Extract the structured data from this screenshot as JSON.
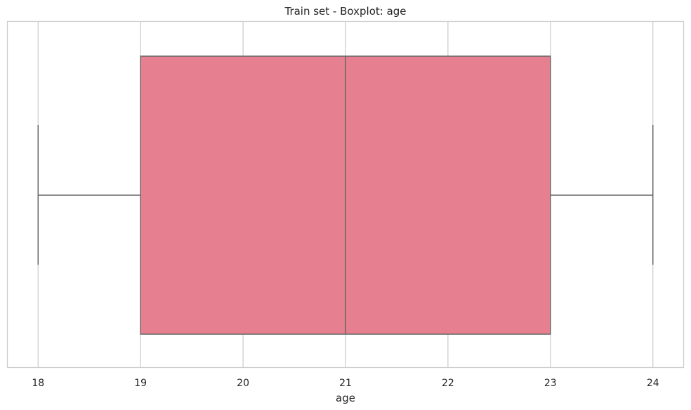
{
  "chart_data": {
    "type": "boxplot",
    "title": "Train set - Boxplot: age",
    "xlabel": "age",
    "ylabel": "",
    "orientation": "horizontal",
    "xlim": [
      17.7,
      24.3
    ],
    "ticks": [
      18,
      19,
      20,
      21,
      22,
      23,
      24
    ],
    "tick_labels": [
      "18",
      "19",
      "20",
      "21",
      "22",
      "23",
      "24"
    ],
    "box": {
      "whisker_low": 18,
      "q1": 19,
      "median": 21,
      "q3": 23,
      "whisker_high": 24
    },
    "grid": true,
    "box_color": "#e67f8f",
    "line_color": "#666666",
    "grid_color": "#cccccc"
  }
}
